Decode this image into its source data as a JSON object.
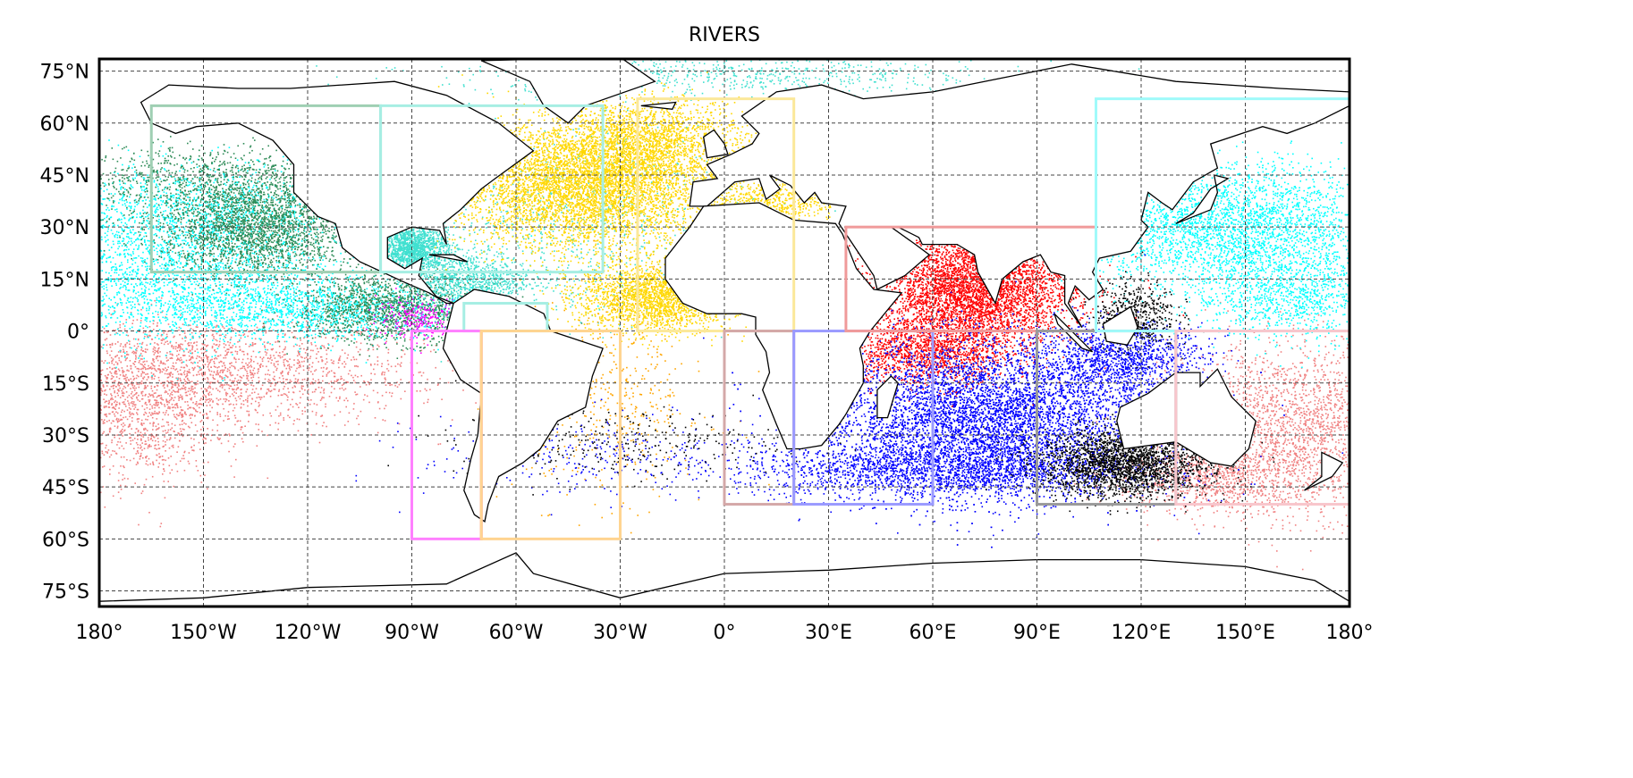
{
  "title": "RIVERS",
  "map": {
    "projection": "equirectangular",
    "lon_range": [
      -180,
      180
    ],
    "lat_range": [
      -79.5,
      78.5
    ],
    "grid": true,
    "lat_ticks": [
      {
        "value": 75,
        "label": "75°N"
      },
      {
        "value": 60,
        "label": "60°N"
      },
      {
        "value": 45,
        "label": "45°N"
      },
      {
        "value": 30,
        "label": "30°N"
      },
      {
        "value": 15,
        "label": "15°N"
      },
      {
        "value": 0,
        "label": "0°"
      },
      {
        "value": -15,
        "label": "15°S"
      },
      {
        "value": -30,
        "label": "30°S"
      },
      {
        "value": -45,
        "label": "45°S"
      },
      {
        "value": -60,
        "label": "60°S"
      },
      {
        "value": -75,
        "label": "75°S"
      }
    ],
    "lon_ticks": [
      {
        "value": -180,
        "label": "180°"
      },
      {
        "value": -150,
        "label": "150°W"
      },
      {
        "value": -120,
        "label": "120°W"
      },
      {
        "value": -90,
        "label": "90°W"
      },
      {
        "value": -60,
        "label": "60°W"
      },
      {
        "value": -30,
        "label": "30°W"
      },
      {
        "value": 0,
        "label": "0°"
      },
      {
        "value": 30,
        "label": "30°E"
      },
      {
        "value": 60,
        "label": "60°E"
      },
      {
        "value": 90,
        "label": "90°E"
      },
      {
        "value": 120,
        "label": "120°E"
      },
      {
        "value": 150,
        "label": "150°E"
      },
      {
        "value": 180,
        "label": "180°"
      }
    ],
    "release_regions": [
      {
        "color": "#9fcfb3",
        "lon": [
          -165,
          -99
        ],
        "lat": [
          17,
          65
        ]
      },
      {
        "color": "#a6eee3",
        "lon": [
          -99,
          -35
        ],
        "lat": [
          17,
          65
        ]
      },
      {
        "color": "#a6eee3",
        "lon": [
          -75,
          -51
        ],
        "lat": [
          0,
          8
        ]
      },
      {
        "color": "#fbe89a",
        "lon": [
          -25,
          20
        ],
        "lat": [
          0,
          67
        ]
      },
      {
        "color": "#ff80ff",
        "lon": [
          -90,
          -70
        ],
        "lat": [
          -60,
          0
        ]
      },
      {
        "color": "#ffa6a6",
        "lon": [
          -70,
          -70
        ],
        "lat": [
          -60,
          0
        ]
      },
      {
        "color": "#ffd490",
        "lon": [
          -70,
          -30
        ],
        "lat": [
          -60,
          0
        ]
      },
      {
        "color": "#d4a8a8",
        "lon": [
          0,
          20
        ],
        "lat": [
          -50,
          0
        ]
      },
      {
        "color": "#9a9aff",
        "lon": [
          20,
          60
        ],
        "lat": [
          -50,
          0
        ]
      },
      {
        "color": "#f09a9a",
        "lon": [
          35,
          107
        ],
        "lat": [
          0,
          30
        ]
      },
      {
        "color": "#9a9a9a",
        "lon": [
          90,
          130
        ],
        "lat": [
          -50,
          0
        ]
      },
      {
        "color": "#a0fafa",
        "lon": [
          107,
          180
        ],
        "lat": [
          0,
          67
        ]
      },
      {
        "color": "#f8c6cc",
        "lon": [
          130,
          180
        ],
        "lat": [
          -50,
          0
        ]
      }
    ],
    "particle_colors": [
      "#2e8b57",
      "#00ffff",
      "#40e0d0",
      "#ffd700",
      "#ff0000",
      "#0000ff",
      "#000000",
      "#f08080",
      "#ffa500",
      "#ff00ff"
    ]
  }
}
